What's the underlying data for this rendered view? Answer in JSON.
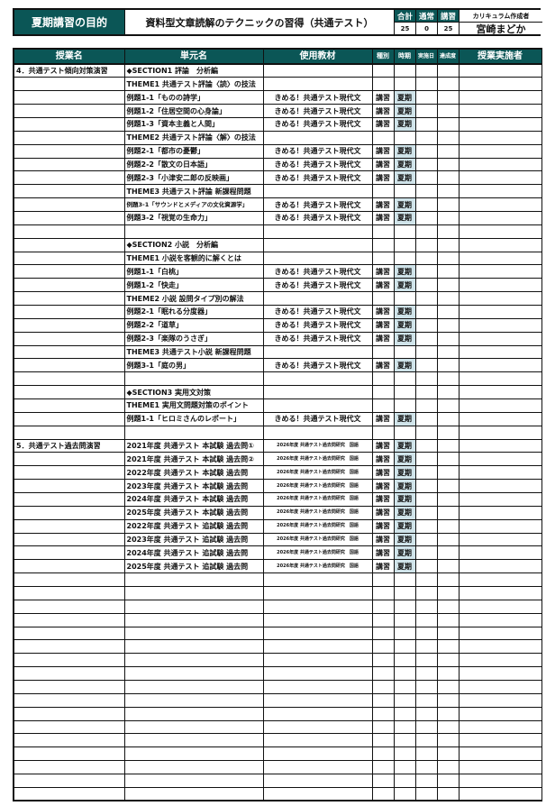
{
  "header": {
    "title": "夏期講習の目的",
    "purpose": "資料型文章読解のテクニックの習得（共通テスト）",
    "total_label": "合計",
    "regular_label": "通常",
    "course_label": "講習",
    "creator_label": "カリキュラム作成者",
    "total": "25",
    "regular": "0",
    "course": "25",
    "creator": "宮崎まどか"
  },
  "columns": [
    "授業名",
    "単元名",
    "使用教材",
    "種別",
    "時期",
    "実施日",
    "達成度",
    "授業実施者"
  ],
  "colors": {
    "header_bg": "#0b5656",
    "period_bg": "#d0e4ea"
  },
  "rows": [
    [
      "4．共通テスト傾向対策演習",
      "◆SECTION1 評論　分析編",
      "",
      "",
      ""
    ],
    [
      "",
      "THEME1 共通テスト評論〈読〉の技法",
      "",
      "",
      ""
    ],
    [
      "",
      "例題1-1「ものの詩学」",
      "きめる！共通テスト現代文",
      "講習",
      "夏期"
    ],
    [
      "",
      "例題1-2「住居空間の心身論」",
      "きめる！共通テスト現代文",
      "講習",
      "夏期"
    ],
    [
      "",
      "例題1-3「資本主義と人間」",
      "きめる！共通テスト現代文",
      "講習",
      "夏期"
    ],
    [
      "",
      "THEME2 共通テスト評論〈解〉の技法",
      "",
      "",
      ""
    ],
    [
      "",
      "例題2-1「都市の憂鬱」",
      "きめる！共通テスト現代文",
      "講習",
      "夏期"
    ],
    [
      "",
      "例題2-2「散文の日本語」",
      "きめる！共通テスト現代文",
      "講習",
      "夏期"
    ],
    [
      "",
      "例題2-3「小津安二郎の反映画」",
      "きめる！共通テスト現代文",
      "講習",
      "夏期"
    ],
    [
      "",
      "THEME3 共通テスト評論 新課程問題",
      "",
      "",
      ""
    ],
    [
      "",
      "例題3-1「サウンドとメディアの文化資源学」",
      "きめる！共通テスト現代文",
      "講習",
      "夏期"
    ],
    [
      "",
      "例題3-2「視覚の生命力」",
      "きめる！共通テスト現代文",
      "講習",
      "夏期"
    ],
    [
      "",
      "",
      "",
      "",
      ""
    ],
    [
      "",
      "◆SECTION2 小説　分析編",
      "",
      "",
      ""
    ],
    [
      "",
      "THEME1 小説を客観的に解くとは",
      "",
      "",
      ""
    ],
    [
      "",
      "例題1-1「白桃」",
      "きめる！共通テスト現代文",
      "講習",
      "夏期"
    ],
    [
      "",
      "例題1-2「快走」",
      "きめる！共通テスト現代文",
      "講習",
      "夏期"
    ],
    [
      "",
      "THEME2 小説 設問タイプ別の解法",
      "",
      "",
      ""
    ],
    [
      "",
      "例題2-1「眠れる分度器」",
      "きめる！共通テスト現代文",
      "講習",
      "夏期"
    ],
    [
      "",
      "例題2-2「道草」",
      "きめる！共通テスト現代文",
      "講習",
      "夏期"
    ],
    [
      "",
      "例題2-3「楽隊のうさぎ」",
      "きめる！共通テスト現代文",
      "講習",
      "夏期"
    ],
    [
      "",
      "THEME3 共通テスト小説 新課程問題",
      "",
      "",
      ""
    ],
    [
      "",
      "例題3-1「庭の男」",
      "きめる！共通テスト現代文",
      "講習",
      "夏期"
    ],
    [
      "",
      "",
      "",
      "",
      ""
    ],
    [
      "",
      "◆SECTION3 実用文対策",
      "",
      "",
      ""
    ],
    [
      "",
      "THEME1 実用文問題対策のポイント",
      "",
      "",
      ""
    ],
    [
      "",
      "例題1-1「ヒロミさんのレポート」",
      "きめる！共通テスト現代文",
      "講習",
      "夏期"
    ],
    [
      "",
      "",
      "",
      "",
      ""
    ],
    [
      "5．共通テスト過去問演習",
      "2021年度 共通テスト 本試験 過去問①",
      "2026年度 共通テスト過去問研究　国語",
      "講習",
      "夏期"
    ],
    [
      "",
      "2021年度 共通テスト 本試験 過去問②",
      "2026年度 共通テスト過去問研究　国語",
      "講習",
      "夏期"
    ],
    [
      "",
      "2022年度 共通テスト 本試験 過去問",
      "2026年度 共通テスト過去問研究　国語",
      "講習",
      "夏期"
    ],
    [
      "",
      "2023年度 共通テスト 本試験 過去問",
      "2026年度 共通テスト過去問研究　国語",
      "講習",
      "夏期"
    ],
    [
      "",
      "2024年度 共通テスト 本試験 過去問",
      "2026年度 共通テスト過去問研究　国語",
      "講習",
      "夏期"
    ],
    [
      "",
      "2025年度 共通テスト 本試験 過去問",
      "2026年度 共通テスト過去問研究　国語",
      "講習",
      "夏期"
    ],
    [
      "",
      "2022年度 共通テスト 追試験 過去問",
      "2026年度 共通テスト過去問研究　国語",
      "講習",
      "夏期"
    ],
    [
      "",
      "2023年度 共通テスト 追試験 過去問",
      "2026年度 共通テスト過去問研究　国語",
      "講習",
      "夏期"
    ],
    [
      "",
      "2024年度 共通テスト 追試験 過去問",
      "2026年度 共通テスト過去問研究　国語",
      "講習",
      "夏期"
    ],
    [
      "",
      "2025年度 共通テスト 追試験 過去問",
      "2026年度 共通テスト過去問研究　国語",
      "講習",
      "夏期"
    ]
  ],
  "blank_rows": 17
}
